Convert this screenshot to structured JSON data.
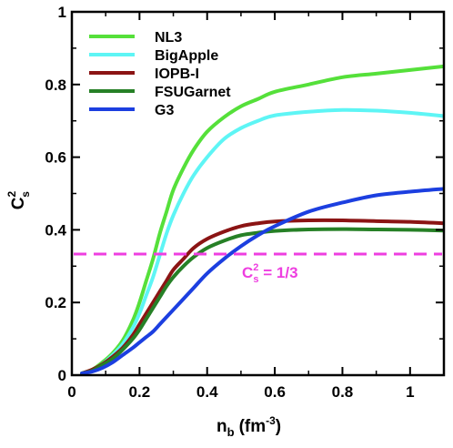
{
  "chart_data": {
    "type": "line",
    "xlabel": "n",
    "xlabel_sub": "b",
    "xlabel_units": "(fm",
    "xlabel_units_exp": "-3",
    "xlabel_units_close": ")",
    "ylabel": "C",
    "ylabel_sup": "2",
    "ylabel_sub": "s",
    "xlim": [
      0,
      1.1
    ],
    "ylim": [
      0,
      1
    ],
    "xticks": [
      0,
      0.2,
      0.4,
      0.6,
      0.8,
      1
    ],
    "xtick_labels": [
      "0",
      "0.2",
      "0.4",
      "0.6",
      "0.8",
      "1"
    ],
    "yticks": [
      0,
      0.2,
      0.4,
      0.6,
      0.8,
      1
    ],
    "ytick_labels": [
      "0",
      "0.2",
      "0.4",
      "0.6",
      "0.8",
      "1"
    ],
    "grid": false,
    "legend_position": "top-left",
    "series": [
      {
        "name": "NL3",
        "color": "#55e03a",
        "x": [
          0.03,
          0.06,
          0.09,
          0.12,
          0.15,
          0.18,
          0.2,
          0.22,
          0.24,
          0.26,
          0.28,
          0.3,
          0.33,
          0.36,
          0.4,
          0.45,
          0.5,
          0.55,
          0.6,
          0.7,
          0.8,
          0.9,
          1.0,
          1.1
        ],
        "y": [
          0.005,
          0.015,
          0.035,
          0.06,
          0.095,
          0.15,
          0.2,
          0.26,
          0.32,
          0.39,
          0.45,
          0.51,
          0.57,
          0.62,
          0.67,
          0.71,
          0.74,
          0.76,
          0.78,
          0.8,
          0.82,
          0.83,
          0.84,
          0.85
        ]
      },
      {
        "name": "BigApple",
        "color": "#5ef5f5",
        "x": [
          0.03,
          0.06,
          0.09,
          0.12,
          0.15,
          0.18,
          0.2,
          0.22,
          0.24,
          0.26,
          0.28,
          0.3,
          0.33,
          0.36,
          0.4,
          0.45,
          0.5,
          0.55,
          0.6,
          0.7,
          0.8,
          0.9,
          1.0,
          1.1
        ],
        "y": [
          0.005,
          0.012,
          0.03,
          0.055,
          0.085,
          0.13,
          0.17,
          0.22,
          0.27,
          0.33,
          0.39,
          0.44,
          0.5,
          0.55,
          0.6,
          0.65,
          0.68,
          0.7,
          0.715,
          0.725,
          0.73,
          0.728,
          0.722,
          0.713
        ]
      },
      {
        "name": "IOPB-I",
        "color": "#8b1414",
        "x": [
          0.03,
          0.06,
          0.09,
          0.12,
          0.15,
          0.18,
          0.2,
          0.22,
          0.24,
          0.26,
          0.28,
          0.3,
          0.33,
          0.36,
          0.4,
          0.45,
          0.5,
          0.55,
          0.6,
          0.7,
          0.8,
          0.9,
          1.0,
          1.1
        ],
        "y": [
          0.005,
          0.015,
          0.03,
          0.05,
          0.075,
          0.11,
          0.14,
          0.17,
          0.2,
          0.23,
          0.26,
          0.29,
          0.32,
          0.35,
          0.375,
          0.395,
          0.41,
          0.418,
          0.423,
          0.426,
          0.426,
          0.424,
          0.422,
          0.418
        ]
      },
      {
        "name": "FSUGarnet",
        "color": "#268026",
        "x": [
          0.03,
          0.06,
          0.09,
          0.12,
          0.15,
          0.18,
          0.2,
          0.22,
          0.24,
          0.26,
          0.28,
          0.3,
          0.33,
          0.36,
          0.4,
          0.45,
          0.5,
          0.55,
          0.6,
          0.7,
          0.8,
          0.9,
          1.0,
          1.1
        ],
        "y": [
          0.005,
          0.012,
          0.028,
          0.045,
          0.07,
          0.1,
          0.125,
          0.155,
          0.185,
          0.215,
          0.245,
          0.27,
          0.3,
          0.325,
          0.35,
          0.37,
          0.385,
          0.392,
          0.397,
          0.401,
          0.402,
          0.401,
          0.4,
          0.398
        ]
      },
      {
        "name": "G3",
        "color": "#1c3fe0",
        "x": [
          0.03,
          0.06,
          0.09,
          0.12,
          0.15,
          0.18,
          0.2,
          0.22,
          0.24,
          0.26,
          0.28,
          0.3,
          0.33,
          0.36,
          0.4,
          0.45,
          0.5,
          0.55,
          0.6,
          0.7,
          0.8,
          0.9,
          1.0,
          1.1
        ],
        "y": [
          0.005,
          0.01,
          0.02,
          0.035,
          0.055,
          0.075,
          0.09,
          0.105,
          0.12,
          0.14,
          0.16,
          0.18,
          0.21,
          0.24,
          0.28,
          0.32,
          0.355,
          0.385,
          0.41,
          0.45,
          0.475,
          0.495,
          0.505,
          0.513
        ]
      }
    ],
    "reference_line": {
      "y": 0.3333,
      "color": "#ee3ee0",
      "style": "dashed",
      "label_base": "C",
      "label_sup": "2",
      "label_sub": "s",
      "label_rest": " = 1/3"
    }
  }
}
